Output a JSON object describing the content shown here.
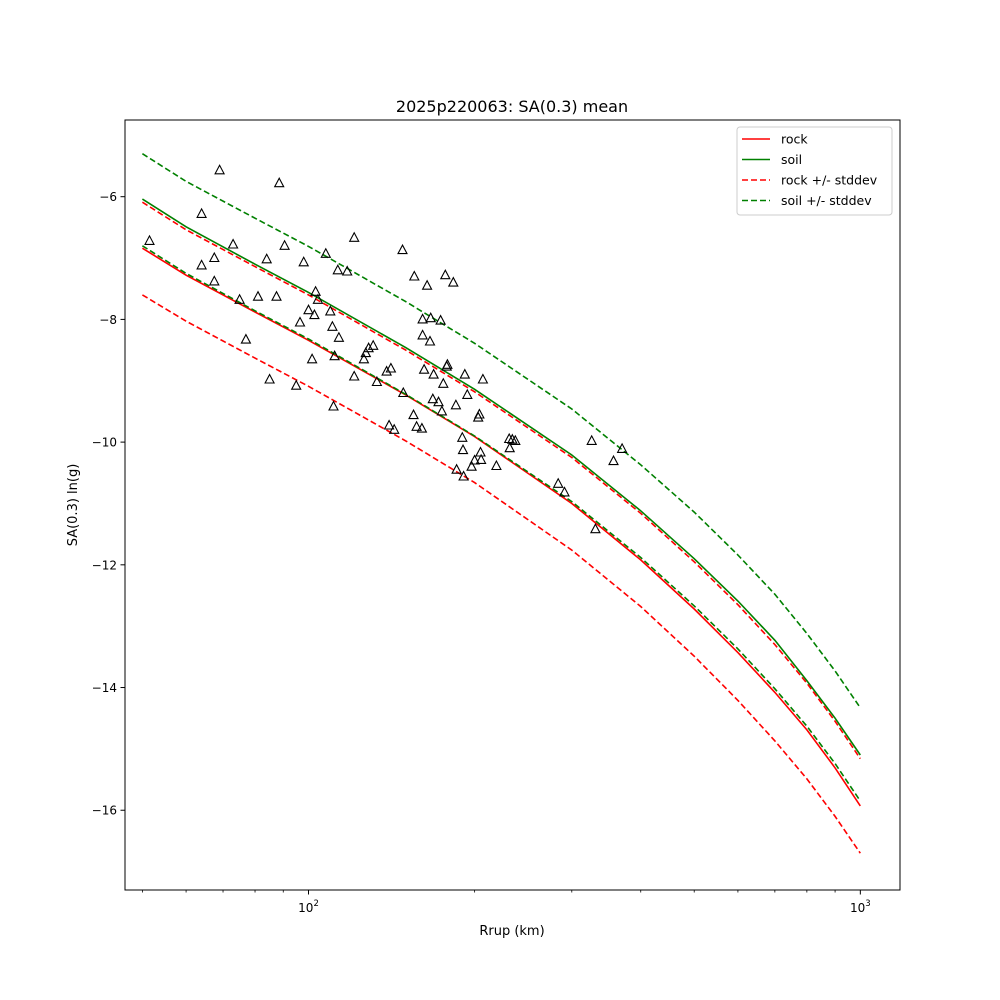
{
  "chart_data": {
    "type": "line",
    "title": "2025p220063: SA(0.3) mean",
    "xlabel": "Rrup (km)",
    "ylabel": "SA(0.3) ln(g)",
    "xscale": "log",
    "xlim": [
      46.5,
      1180
    ],
    "ylim": [
      -17.3,
      -4.75
    ],
    "grid": false,
    "legend_position": "top-right",
    "x_ticks": [
      {
        "value": 100,
        "base": "10",
        "exp": "2"
      },
      {
        "value": 1000,
        "base": "10",
        "exp": "3"
      }
    ],
    "y_ticks": [
      {
        "value": -16,
        "label": "−16"
      },
      {
        "value": -14,
        "label": "−14"
      },
      {
        "value": -12,
        "label": "−12"
      },
      {
        "value": -10,
        "label": "−10"
      },
      {
        "value": -8,
        "label": "−8"
      },
      {
        "value": -6,
        "label": "−6"
      }
    ],
    "curve_x": [
      50,
      60,
      80,
      100,
      150,
      200,
      300,
      400,
      500,
      600,
      700,
      800,
      900,
      1000
    ],
    "series": [
      {
        "name": "rock",
        "color": "#ff0000",
        "style": "solid",
        "y": [
          -6.84,
          -7.28,
          -7.88,
          -8.34,
          -9.23,
          -9.91,
          -11.0,
          -11.92,
          -12.72,
          -13.43,
          -14.08,
          -14.69,
          -15.31,
          -15.93
        ]
      },
      {
        "name": "soil",
        "color": "#008000",
        "style": "solid",
        "y": [
          -6.04,
          -6.49,
          -7.1,
          -7.56,
          -8.46,
          -9.14,
          -10.21,
          -11.12,
          -11.9,
          -12.59,
          -13.23,
          -13.89,
          -14.5,
          -15.1
        ]
      },
      {
        "name": "rock +/- stddev",
        "color": "#ff0000",
        "style": "dashed",
        "y": [
          -6.09,
          -6.54,
          -7.14,
          -7.6,
          -8.5,
          -9.18,
          -10.25,
          -11.16,
          -11.95,
          -12.65,
          -13.3,
          -13.93,
          -14.55,
          -15.16
        ]
      },
      {
        "name": "",
        "color": "#ff0000",
        "style": "dashed",
        "y": [
          -7.6,
          -8.03,
          -8.63,
          -9.09,
          -9.98,
          -10.66,
          -11.76,
          -12.68,
          -13.49,
          -14.21,
          -14.87,
          -15.49,
          -16.1,
          -16.7
        ]
      },
      {
        "name": "soil +/- stddev",
        "color": "#008000",
        "style": "dashed",
        "y": [
          -5.3,
          -5.75,
          -6.35,
          -6.81,
          -7.71,
          -8.39,
          -9.46,
          -10.37,
          -11.14,
          -11.84,
          -12.48,
          -13.12,
          -13.73,
          -14.33
        ]
      },
      {
        "name": "",
        "color": "#008000",
        "style": "dashed",
        "y": [
          -6.8,
          -7.25,
          -7.86,
          -8.32,
          -9.22,
          -9.9,
          -10.97,
          -11.88,
          -12.67,
          -13.37,
          -14.02,
          -14.63,
          -15.24,
          -15.85
        ]
      }
    ],
    "observations": {
      "marker": "triangle",
      "color": "#000000",
      "points": [
        [
          51.5,
          -6.72
        ],
        [
          64.0,
          -6.28
        ],
        [
          64.0,
          -7.12
        ],
        [
          67.5,
          -7.0
        ],
        [
          67.5,
          -7.38
        ],
        [
          69.0,
          -5.57
        ],
        [
          73.0,
          -6.78
        ],
        [
          75.0,
          -7.68
        ],
        [
          77.0,
          -8.33
        ],
        [
          81.0,
          -7.63
        ],
        [
          84.0,
          -7.02
        ],
        [
          85.0,
          -8.98
        ],
        [
          87.5,
          -7.63
        ],
        [
          88.5,
          -5.78
        ],
        [
          90.5,
          -6.8
        ],
        [
          95.0,
          -9.08
        ],
        [
          96.5,
          -8.05
        ],
        [
          98.0,
          -7.07
        ],
        [
          100.0,
          -7.85
        ],
        [
          101.5,
          -8.65
        ],
        [
          102.5,
          -7.93
        ],
        [
          103.0,
          -7.55
        ],
        [
          104.0,
          -7.68
        ],
        [
          107.5,
          -6.93
        ],
        [
          109.5,
          -7.87
        ],
        [
          110.5,
          -8.12
        ],
        [
          111.0,
          -9.42
        ],
        [
          111.5,
          -8.6
        ],
        [
          113.0,
          -7.2
        ],
        [
          113.5,
          -8.3
        ],
        [
          117.5,
          -7.22
        ],
        [
          121.0,
          -6.67
        ],
        [
          121.0,
          -8.93
        ],
        [
          126.0,
          -8.65
        ],
        [
          127.0,
          -8.55
        ],
        [
          128.5,
          -8.47
        ],
        [
          131.0,
          -8.43
        ],
        [
          133.0,
          -9.02
        ],
        [
          138.5,
          -8.85
        ],
        [
          140.0,
          -9.73
        ],
        [
          141.0,
          -8.8
        ],
        [
          143.0,
          -9.8
        ],
        [
          148.0,
          -6.87
        ],
        [
          148.5,
          -9.2
        ],
        [
          155.0,
          -9.56
        ],
        [
          155.5,
          -7.3
        ],
        [
          157.0,
          -9.75
        ],
        [
          160.5,
          -9.78
        ],
        [
          161.0,
          -8.0
        ],
        [
          161.0,
          -8.26
        ],
        [
          162.0,
          -8.82
        ],
        [
          164.0,
          -7.45
        ],
        [
          166.0,
          -8.36
        ],
        [
          166.5,
          -7.98
        ],
        [
          168.0,
          -9.3
        ],
        [
          168.5,
          -8.9
        ],
        [
          172.0,
          -9.35
        ],
        [
          173.5,
          -8.02
        ],
        [
          174.5,
          -9.5
        ],
        [
          175.5,
          -9.05
        ],
        [
          177.0,
          -7.28
        ],
        [
          178.0,
          -8.77
        ],
        [
          178.5,
          -8.74
        ],
        [
          183.0,
          -7.4
        ],
        [
          185.0,
          -9.4
        ],
        [
          185.5,
          -10.45
        ],
        [
          190.0,
          -9.93
        ],
        [
          190.5,
          -10.13
        ],
        [
          191.0,
          -10.56
        ],
        [
          192.0,
          -8.9
        ],
        [
          194.0,
          -9.23
        ],
        [
          197.5,
          -10.4
        ],
        [
          200.0,
          -10.3
        ],
        [
          203.0,
          -9.6
        ],
        [
          204.0,
          -9.55
        ],
        [
          205.0,
          -10.17
        ],
        [
          205.5,
          -10.29
        ],
        [
          207.0,
          -8.98
        ],
        [
          219.0,
          -10.39
        ],
        [
          231.0,
          -9.95
        ],
        [
          231.5,
          -10.1
        ],
        [
          234.0,
          -9.96
        ],
        [
          237.0,
          -9.98
        ],
        [
          283.5,
          -10.68
        ],
        [
          291.0,
          -10.82
        ],
        [
          326.0,
          -9.98
        ],
        [
          331.0,
          -11.42
        ],
        [
          357.0,
          -10.31
        ],
        [
          370.0,
          -10.11
        ]
      ]
    }
  }
}
